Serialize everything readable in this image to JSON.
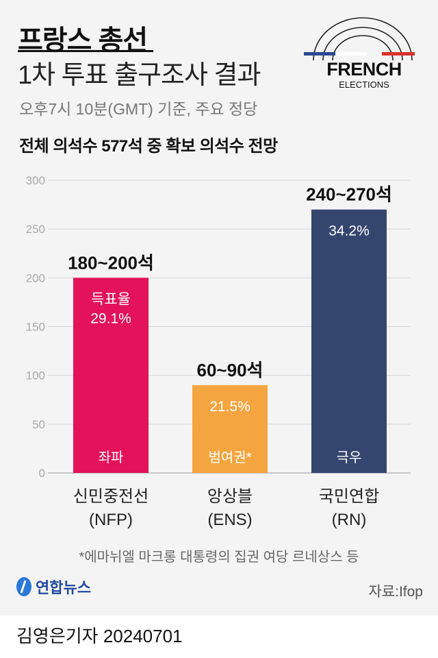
{
  "header": {
    "title_line1": "프랑스 총선",
    "title_line2": "1차 투표 출구조사 결과",
    "subtitle": "오후7시 10분(GMT) 기준, 주요 정당",
    "logo_line1": "FRENCH",
    "logo_line2": "ELECTIONS"
  },
  "chart_data": {
    "type": "bar",
    "title": "전체 의석수 577석 중 확보 의석수 전망",
    "ylim": [
      0,
      300
    ],
    "yticks": [
      "0",
      "50",
      "100",
      "150",
      "200",
      "250",
      "300"
    ],
    "grid": true,
    "categories": [
      "신민중전선\n(NFP)",
      "앙상블\n(ENS)",
      "국민연합\n(RN)"
    ],
    "category_line1": [
      "신민중전선",
      "앙상블",
      "국민연합"
    ],
    "category_line2": [
      "(NFP)",
      "(ENS)",
      "(RN)"
    ],
    "values_low": [
      180,
      60,
      240
    ],
    "values": [
      200,
      90,
      270
    ],
    "range_labels": [
      "180~200석",
      "60~90석",
      "240~270석"
    ],
    "vote_share_label": "득표율",
    "vote_shares": [
      "29.1%",
      "21.5%",
      "34.2%"
    ],
    "blocs": [
      "좌파",
      "범여권*",
      "극우"
    ],
    "colors": [
      "#e3125a",
      "#f5a540",
      "#35466e"
    ]
  },
  "footer": {
    "footnote": "*에마뉘엘 마크롱 대통령의 집권 여당 르네상스 등",
    "brand": "연합뉴스",
    "source": "자료:Ifop",
    "byline": "김영은기자  20240701"
  }
}
